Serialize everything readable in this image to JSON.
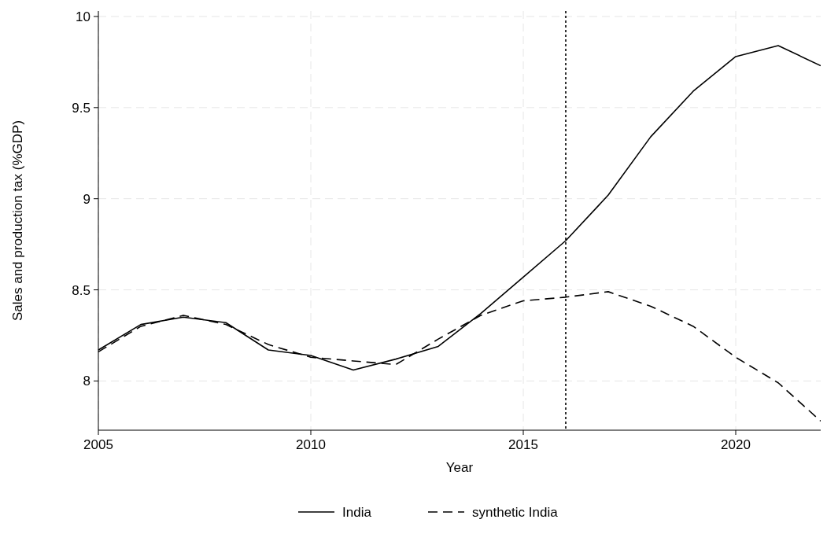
{
  "chart_data": {
    "type": "line",
    "xlabel": "Year",
    "ylabel": "Sales and production tax (%GDP)",
    "x": [
      2005,
      2006,
      2007,
      2008,
      2009,
      2010,
      2011,
      2012,
      2013,
      2014,
      2015,
      2016,
      2017,
      2018,
      2019,
      2020,
      2021,
      2022
    ],
    "series": [
      {
        "name": "India",
        "color": "#000000",
        "line_style": "solid",
        "values": [
          8.17,
          8.31,
          8.35,
          8.32,
          8.17,
          8.14,
          8.06,
          8.12,
          8.19,
          8.37,
          8.57,
          8.77,
          9.02,
          9.34,
          9.59,
          9.78,
          9.84,
          9.73
        ]
      },
      {
        "name": "synthetic India",
        "color": "#000000",
        "line_style": "dashed",
        "values": [
          8.16,
          8.3,
          8.36,
          8.31,
          8.2,
          8.13,
          8.11,
          8.09,
          8.23,
          8.36,
          8.44,
          8.46,
          8.49,
          8.41,
          8.3,
          8.13,
          7.99,
          7.78
        ]
      }
    ],
    "xlim": [
      2005,
      2022
    ],
    "xticks": [
      2005,
      2010,
      2015,
      2020
    ],
    "ylim": [
      7.73,
      10.03
    ],
    "yticks": [
      8,
      8.5,
      9,
      9.5,
      10
    ],
    "ref_lines": [
      {
        "axis": "x",
        "value": 2016,
        "color": "#000000",
        "line_style": "dotted"
      }
    ],
    "grid": true,
    "legend": "bottom"
  }
}
